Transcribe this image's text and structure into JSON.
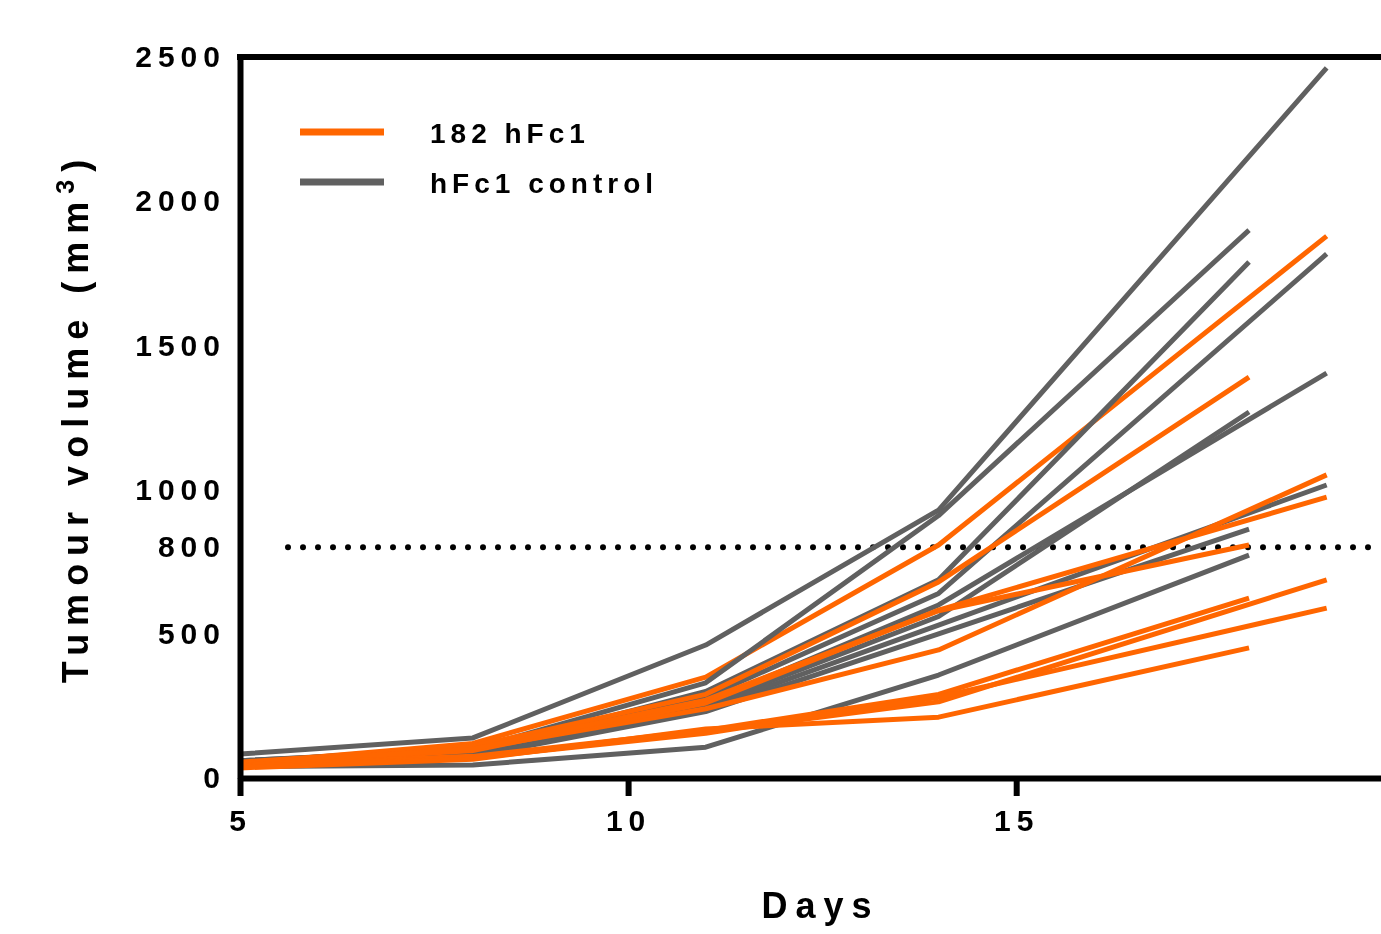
{
  "chart_data": {
    "type": "line",
    "xlabel": "Days",
    "ylabel": "Tumour volume (mm$^{3}$)",
    "xlim": [
      5,
      19.7
    ],
    "xticks": [
      5,
      10,
      15
    ],
    "ylim": [
      0,
      2500
    ],
    "yticks": [
      0,
      500,
      800,
      1000,
      1500,
      2000,
      2500
    ],
    "grid": false,
    "legend": "top left",
    "marker": "none",
    "line_style": "solid",
    "ref_lines": [
      {
        "axis": "y",
        "value": 800,
        "line_style": "dotted",
        "color": "#000000"
      }
    ],
    "series": [
      {
        "name": "182 hFc1",
        "color": "#ff6600",
        "x": [
          5,
          8,
          11,
          14,
          19
        ],
        "values": [
          50,
          120,
          350,
          808,
          1879
        ]
      },
      {
        "name": "hFc1 control",
        "color": "#606060",
        "x": [
          5,
          8,
          11,
          14,
          19
        ],
        "values": [
          83,
          139,
          461,
          929,
          2462
        ]
      },
      {
        "color": "#606060",
        "x": [
          5,
          8,
          11,
          14,
          18
        ],
        "values": [
          60,
          100,
          330,
          910,
          1900
        ]
      },
      {
        "color": "#606060",
        "x": [
          5,
          8,
          11,
          14,
          18
        ],
        "values": [
          55,
          90,
          300,
          687,
          1789
        ]
      },
      {
        "color": "#606060",
        "x": [
          5,
          8,
          11,
          14,
          19
        ],
        "values": [
          60,
          95,
          280,
          640,
          1817
        ]
      },
      {
        "color": "#606060",
        "x": [
          5,
          8,
          11,
          14,
          19
        ],
        "values": [
          55,
          90,
          260,
          600,
          1404
        ]
      },
      {
        "color": "#606060",
        "x": [
          5,
          8,
          11,
          14,
          18
        ],
        "values": [
          50,
          85,
          250,
          560,
          1269
        ]
      },
      {
        "color": "#606060",
        "x": [
          5,
          8,
          11,
          14,
          19
        ],
        "values": [
          50,
          80,
          240,
          530,
          1016
        ]
      },
      {
        "color": "#606060",
        "x": [
          5,
          8,
          11,
          14,
          18
        ],
        "values": [
          45,
          75,
          230,
          500,
          863
        ]
      },
      {
        "color": "#606060",
        "x": [
          5,
          8,
          11,
          14,
          18
        ],
        "values": [
          40,
          45,
          107,
          357,
          773
        ]
      },
      {
        "color": "#ff6600",
        "x": [
          5,
          8,
          11,
          14,
          18
        ],
        "values": [
          55,
          110,
          290,
          680,
          1390
        ]
      },
      {
        "color": "#ff6600",
        "x": [
          5,
          8,
          11,
          14,
          19
        ],
        "values": [
          50,
          100,
          240,
          444,
          1051
        ]
      },
      {
        "color": "#ff6600",
        "x": [
          5,
          8,
          11,
          14,
          19
        ],
        "values": [
          45,
          95,
          260,
          582,
          974
        ]
      },
      {
        "color": "#ff6600",
        "x": [
          5,
          8,
          11,
          14,
          18
        ],
        "values": [
          50,
          100,
          270,
          580,
          808
        ]
      },
      {
        "color": "#ff6600",
        "x": [
          5,
          8,
          11,
          14,
          19
        ],
        "values": [
          40,
          70,
          160,
          264,
          687
        ]
      },
      {
        "color": "#ff6600",
        "x": [
          5,
          8,
          11,
          14,
          18
        ],
        "values": [
          45,
          75,
          165,
          290,
          624
        ]
      },
      {
        "color": "#ff6600",
        "x": [
          5,
          8,
          11,
          14,
          19
        ],
        "values": [
          40,
          70,
          155,
          280,
          589
        ]
      },
      {
        "color": "#ff6600",
        "x": [
          5,
          8,
          11,
          14,
          18
        ],
        "values": [
          35,
          65,
          170,
          211,
          451
        ]
      }
    ]
  }
}
